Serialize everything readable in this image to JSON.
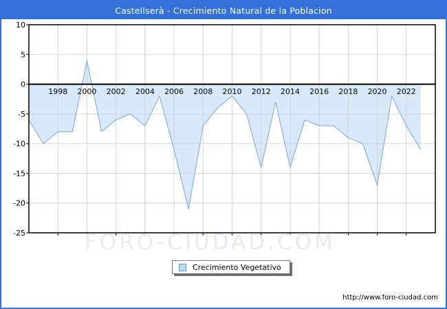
{
  "window": {
    "title": "Castellserà - Crecimiento Natural de la Poblacion"
  },
  "chart_data": {
    "type": "area",
    "title": "Castellserà - Crecimiento Natural de la Poblacion",
    "series": [
      {
        "name": "Crecimiento Vegetativo",
        "x": [
          1996,
          1997,
          1998,
          1999,
          2000,
          2001,
          2002,
          2003,
          2004,
          2005,
          2006,
          2007,
          2008,
          2009,
          2010,
          2011,
          2012,
          2013,
          2014,
          2015,
          2016,
          2017,
          2018,
          2019,
          2020,
          2021,
          2022,
          2023
        ],
        "values": [
          -6,
          -10,
          -8,
          -8,
          4,
          -8,
          -6,
          -5,
          -7,
          -2,
          -11,
          -21,
          -7,
          -4,
          -2,
          -5,
          -14,
          -3,
          -14,
          -6,
          -7,
          -7,
          -9,
          -10,
          -17,
          -2,
          -7,
          -11
        ]
      }
    ],
    "xlim": [
      1996,
      2024
    ],
    "ylim": [
      -25,
      10
    ],
    "yticks": [
      10,
      5,
      0,
      -5,
      -10,
      -15,
      -20,
      -25
    ],
    "xticks": [
      1998,
      2000,
      2002,
      2004,
      2006,
      2008,
      2010,
      2012,
      2014,
      2016,
      2018,
      2020,
      2022
    ],
    "grid": true,
    "legend_position": "bottom-center",
    "colors": {
      "area_fill": "#d9e9fa",
      "line": "#8cb0e0",
      "grid": "#cdcdcd",
      "zero_line": "#000000",
      "plot_border": "#000000"
    }
  },
  "legend": {
    "label": "Crecimiento Vegetativo"
  },
  "watermark": {
    "part1": "FORO-",
    "part2": "CIUDAD.COM"
  },
  "footer": {
    "url": "http://www.foro-ciudad.com"
  },
  "theme": {
    "titlebar_bg": "#3470d8",
    "titlebar_text": "#ffffff",
    "frame_border": "#3470d8"
  }
}
